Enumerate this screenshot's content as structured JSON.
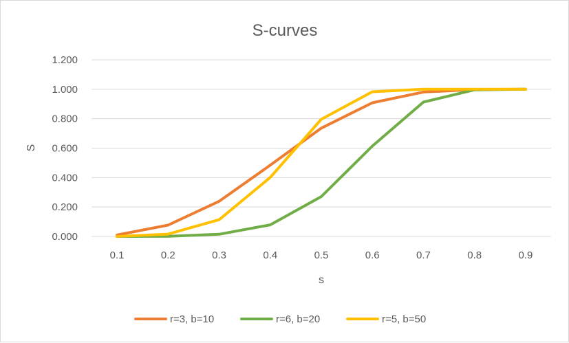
{
  "chart_data": {
    "type": "line",
    "title": "S-curves",
    "xlabel": "s",
    "ylabel": "S",
    "x": [
      "0.1",
      "0.2",
      "0.3",
      "0.4",
      "0.5",
      "0.6",
      "0.7",
      "0.8",
      "0.9"
    ],
    "yticks": [
      "0.000",
      "0.200",
      "0.400",
      "0.600",
      "0.800",
      "1.000",
      "1.200"
    ],
    "ylim": [
      0,
      1.2
    ],
    "grid": true,
    "legend_position": "bottom",
    "series": [
      {
        "name": "r=3, b=10",
        "color": "#ED7D31",
        "values": [
          0.01,
          0.077,
          0.239,
          0.484,
          0.736,
          0.908,
          0.981,
          0.998,
          1.0
        ]
      },
      {
        "name": "r=6, b=20",
        "color": "#70AD47",
        "values": [
          0.0,
          0.001,
          0.015,
          0.079,
          0.271,
          0.614,
          0.913,
          0.996,
          1.0
        ]
      },
      {
        "name": "r=5, b=50",
        "color": "#FFC000",
        "values": [
          0.0,
          0.016,
          0.114,
          0.401,
          0.796,
          0.983,
          1.0,
          1.0,
          1.0
        ]
      }
    ]
  }
}
